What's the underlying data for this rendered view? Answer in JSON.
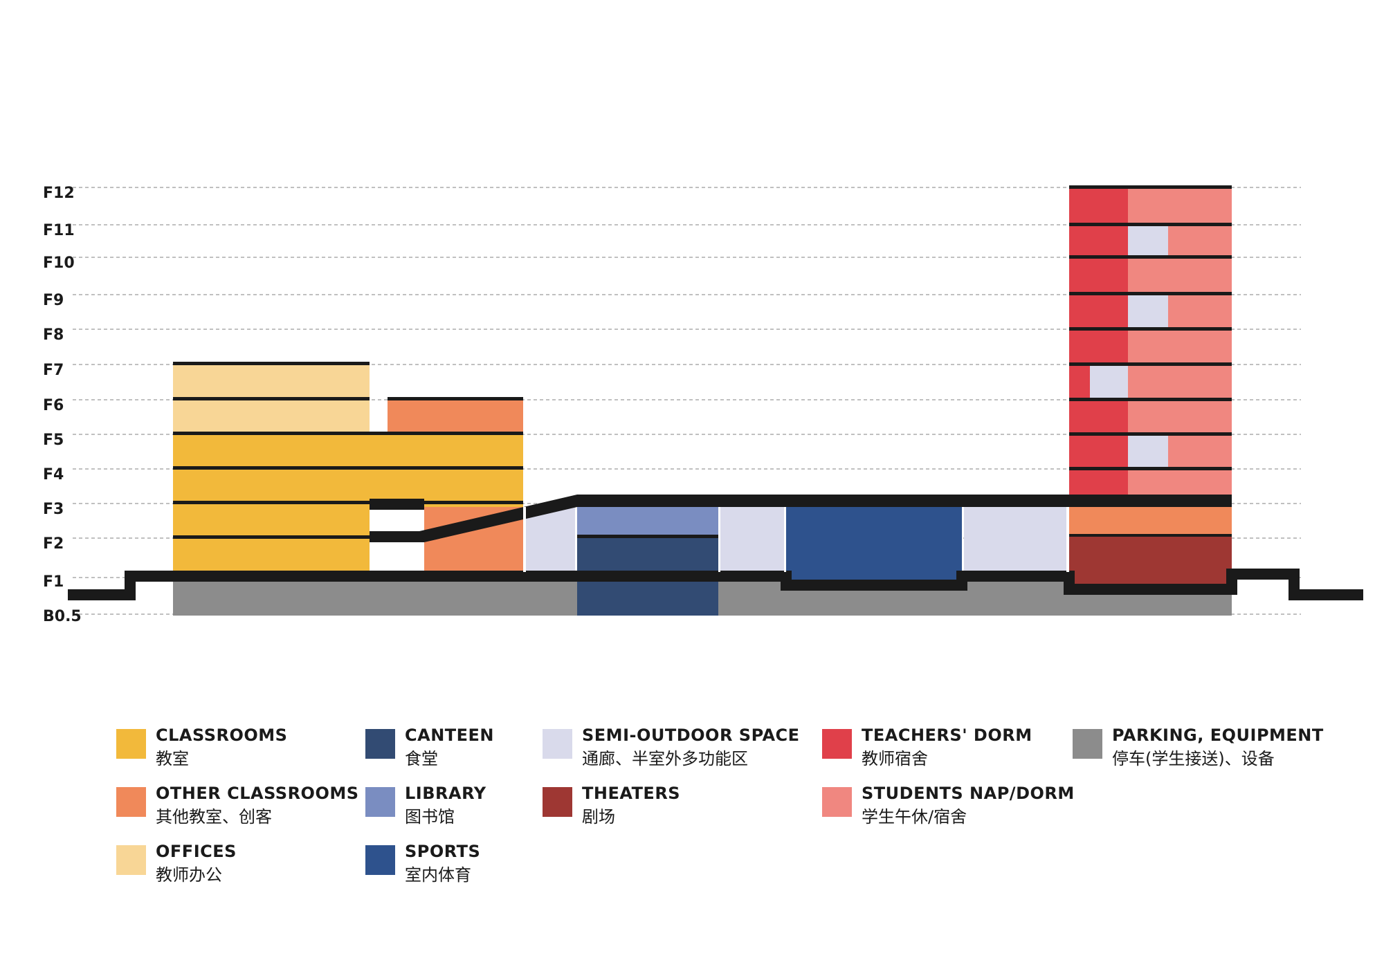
{
  "floors": [
    "F12",
    "F11",
    "F10",
    "F9",
    "F8",
    "F7",
    "F6",
    "F5",
    "F4",
    "F3",
    "F2",
    "F1",
    "B0.5"
  ],
  "colors": {
    "classrooms": "#F2B93B",
    "other_classrooms": "#F0895A",
    "offices": "#F8D696",
    "canteen": "#324B73",
    "library": "#7A8DC1",
    "sports": "#2E528D",
    "semi_outdoor": "#D9DAEB",
    "theaters": "#9E3733",
    "teachers_dorm": "#E0404A",
    "students_dorm": "#F08780",
    "parking": "#8C8C8C",
    "structure": "#1a1a1a"
  },
  "legend": [
    {
      "key": "classrooms",
      "en": "CLASSROOMS",
      "cn": "教室"
    },
    {
      "key": "other_classrooms",
      "en": "OTHER CLASSROOMS",
      "cn": "其他教室、创客"
    },
    {
      "key": "offices",
      "en": "OFFICES",
      "cn": "教师办公"
    },
    {
      "key": "canteen",
      "en": "CANTEEN",
      "cn": "食堂"
    },
    {
      "key": "library",
      "en": "LIBRARY",
      "cn": "图书馆"
    },
    {
      "key": "sports",
      "en": "SPORTS",
      "cn": "室内体育"
    },
    {
      "key": "semi_outdoor",
      "en": "SEMI-OUTDOOR SPACE",
      "cn": "通廊、半室外多功能区"
    },
    {
      "key": "theaters",
      "en": "THEATERS",
      "cn": "剧场"
    },
    {
      "key": "teachers_dorm",
      "en": "TEACHERS' DORM",
      "cn": "教师宿舍"
    },
    {
      "key": "students_dorm",
      "en": "STUDENTS NAP/DORM",
      "cn": "学生午休/宿舍"
    },
    {
      "key": "parking",
      "en": "PARKING, EQUIPMENT",
      "cn": "停车(学生接送)、设备"
    }
  ]
}
